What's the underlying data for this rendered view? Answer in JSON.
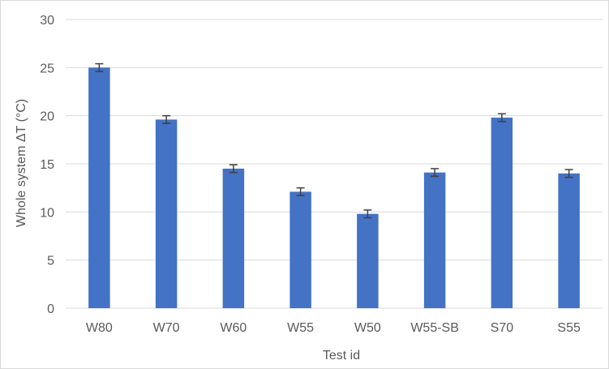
{
  "chart_data": {
    "type": "bar",
    "categories": [
      "W80",
      "W70",
      "W60",
      "W55",
      "W50",
      "W55-SB",
      "S70",
      "S55"
    ],
    "values": [
      25.0,
      19.6,
      14.5,
      12.1,
      9.8,
      14.1,
      19.8,
      14.0
    ],
    "error": [
      0.4,
      0.4,
      0.4,
      0.4,
      0.4,
      0.4,
      0.4,
      0.4
    ],
    "xlabel": "Test id",
    "ylabel": "Whole system ΔT (°C)",
    "ylim": [
      0,
      30
    ],
    "yticks": [
      "0",
      "5",
      "10",
      "15",
      "20",
      "25",
      "30"
    ],
    "grid": true,
    "colors": {
      "bar": "#4472c4",
      "grid": "#d9d9d9",
      "text": "#595959",
      "error_bar": "#404040"
    }
  }
}
